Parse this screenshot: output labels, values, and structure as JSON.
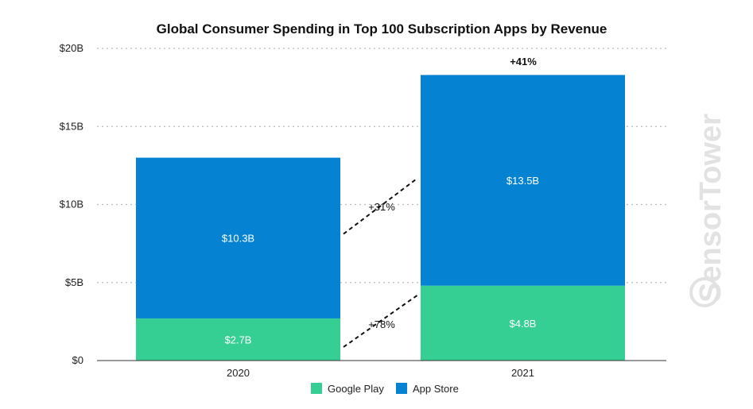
{
  "colors": {
    "google_play": "#36cf93",
    "app_store": "#0583d2",
    "grid": "#bbbbbb",
    "axis": "#333333"
  },
  "watermark": "SensorTower",
  "chart_data": {
    "type": "bar",
    "stacked": true,
    "title": "Global Consumer Spending in Top 100 Subscription Apps by Revenue",
    "categories": [
      "2020",
      "2021"
    ],
    "series": [
      {
        "name": "Google Play",
        "values": [
          2.7,
          4.8
        ],
        "labels": [
          "$2.7B",
          "$4.8B"
        ]
      },
      {
        "name": "App Store",
        "values": [
          10.3,
          13.5
        ],
        "labels": [
          "$10.3B",
          "$13.5B"
        ]
      }
    ],
    "ylim": [
      0,
      20
    ],
    "yticks": [
      0,
      5,
      10,
      15,
      20
    ],
    "ytick_labels": [
      "$0",
      "$5B",
      "$10B",
      "$15B",
      "$20B"
    ],
    "grid": true,
    "legend_position": "bottom",
    "annotations": {
      "google_play_growth": "+78%",
      "app_store_growth": "+31%",
      "total_growth": "+41%"
    }
  }
}
